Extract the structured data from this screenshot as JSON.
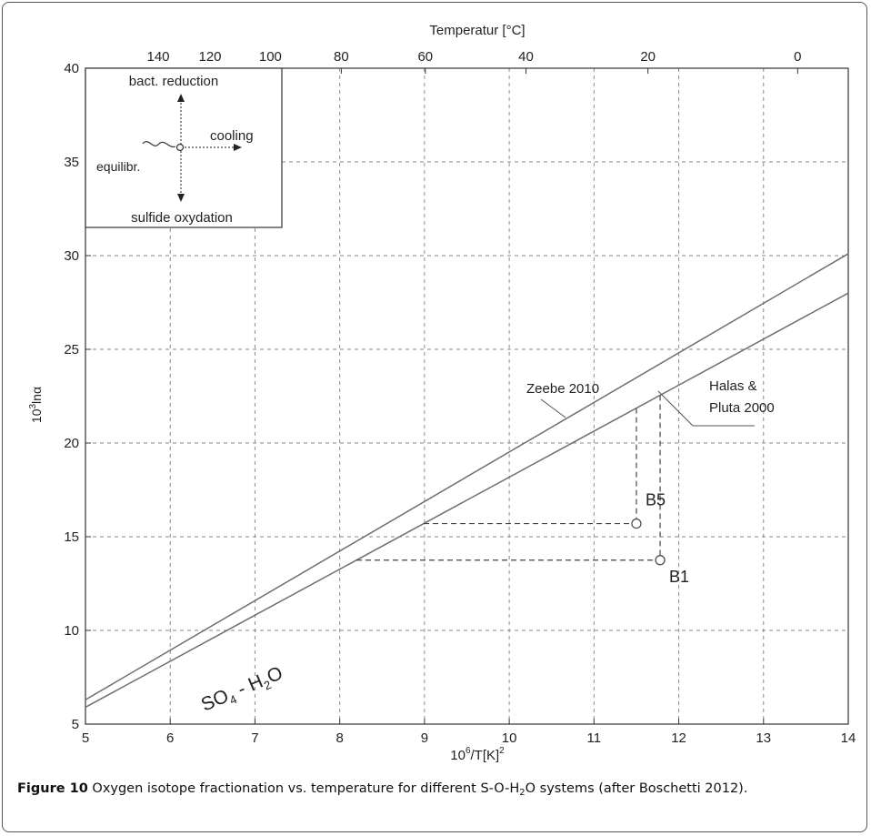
{
  "chart_data": {
    "type": "line",
    "xlabel_main": "10",
    "xlabel_sup": "6",
    "xlabel_rest": "/T[K]",
    "xlabel_sup2": "2",
    "ylabel_main": "10",
    "ylabel_sup": "3",
    "ylabel_rest": "lnα",
    "top_axis_label": "Temperatur [°C]",
    "xlim": [
      5,
      14
    ],
    "ylim": [
      5,
      40
    ],
    "grid": true,
    "x_ticks": [
      5,
      6,
      7,
      8,
      9,
      10,
      11,
      12,
      13,
      14
    ],
    "y_ticks": [
      5,
      10,
      15,
      20,
      25,
      30,
      35,
      40
    ],
    "top_ticks_celsius": [
      140,
      120,
      100,
      80,
      60,
      40,
      20,
      0
    ],
    "series": [
      {
        "name": "Zeebe 2010",
        "x": [
          5,
          14
        ],
        "y": [
          6.3,
          30.1
        ]
      },
      {
        "name": "Halas & Pluta 2000",
        "x": [
          5,
          14
        ],
        "y": [
          5.9,
          28.0
        ]
      }
    ],
    "points": [
      {
        "label": "B5",
        "x": 11.5,
        "y": 15.7
      },
      {
        "label": "B1",
        "x": 11.78,
        "y": 13.75
      }
    ],
    "annotations": {
      "zeebe": "Zeebe 2010",
      "halas_line1": "Halas &",
      "halas_line2": "Pluta 2000",
      "system_main": "SO",
      "system_sub1": "4",
      "system_mid": " - H",
      "system_sub2": "2",
      "system_end": "O"
    },
    "inset": {
      "bact_reduction": "bact. reduction",
      "cooling": "cooling",
      "equilibr": "equilibr.",
      "sulfide_oxydation": "sulfide oxydation"
    }
  },
  "caption": {
    "label": "Figure 10",
    "text_before_sub": " Oxygen isotope fractionation vs. temperature for different S-O-H",
    "sub": "2",
    "text_after_sub": "O systems (after Boschetti 2012)."
  },
  "colors": {
    "line": "#6e6e6e",
    "grid": "#8a8a8a",
    "axis": "#333333",
    "text": "#222222"
  }
}
